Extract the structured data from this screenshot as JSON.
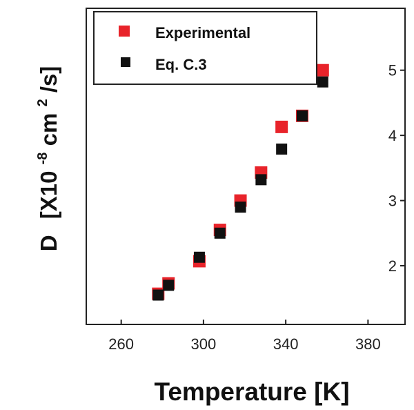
{
  "chart_data": {
    "type": "scatter",
    "xlabel": "Temperature [K]",
    "ylabel_main": "D",
    "ylabel_unit_prefix": "[X10",
    "ylabel_unit_exp": "-8",
    "ylabel_unit_mid": " cm",
    "ylabel_unit_exp2": "2",
    "ylabel_unit_suffix": "/s]",
    "xlim": [
      243,
      398
    ],
    "ylim": [
      1.1,
      5.95
    ],
    "xticks": [
      260,
      300,
      340,
      380
    ],
    "yticks": [
      2,
      3,
      4,
      5
    ],
    "grid": false,
    "legend_position": "top-left",
    "series": [
      {
        "name": "Experimental",
        "color": "#e8232a",
        "x": [
          278,
          283,
          298,
          308,
          318,
          328,
          338,
          348,
          358
        ],
        "y": [
          1.57,
          1.73,
          2.07,
          2.55,
          3.0,
          3.43,
          4.13,
          4.3,
          5.0
        ]
      },
      {
        "name": "Eq. C.3",
        "color": "#111111",
        "x": [
          278,
          283,
          298,
          308,
          318,
          328,
          338,
          348,
          358
        ],
        "y": [
          1.55,
          1.7,
          2.13,
          2.5,
          2.9,
          3.32,
          3.79,
          4.3,
          4.82
        ]
      }
    ]
  }
}
